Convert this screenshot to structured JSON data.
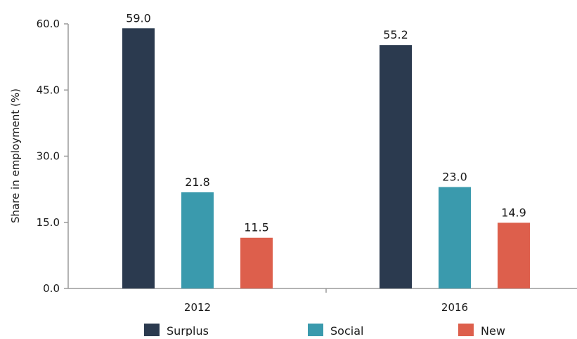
{
  "chart_data": {
    "type": "bar",
    "title": "",
    "xlabel": "",
    "ylabel": "Share in employment (%)",
    "ylim": [
      0,
      60
    ],
    "yticks": [
      0,
      15,
      30,
      45,
      60
    ],
    "ytick_labels": [
      "0.0",
      "15.0",
      "30.0",
      "45.0",
      "60.0"
    ],
    "categories": [
      "2012",
      "2016"
    ],
    "series": [
      {
        "name": "Surplus",
        "color": "#2b3a4f",
        "values": [
          59.0,
          55.2
        ],
        "labels": [
          "59.0",
          "55.2"
        ]
      },
      {
        "name": "Social",
        "color": "#3a9aad",
        "values": [
          21.8,
          23.0
        ],
        "labels": [
          "21.8",
          "23.0"
        ]
      },
      {
        "name": "New",
        "color": "#dd5f4c",
        "values": [
          11.5,
          14.9
        ],
        "labels": [
          "11.5",
          "14.9"
        ]
      }
    ],
    "grid": false,
    "legend_position": "bottom"
  }
}
